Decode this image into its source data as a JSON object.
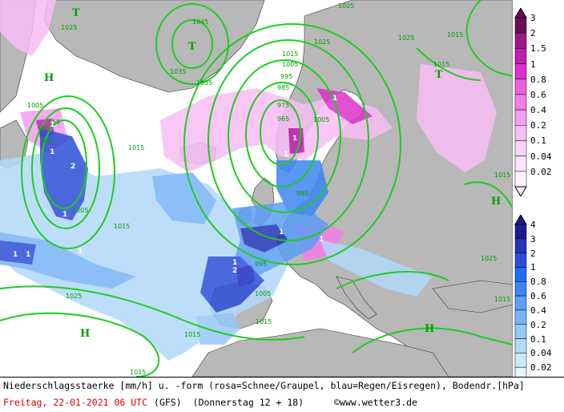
{
  "map": {
    "pressure_centers": [
      {
        "type": "T",
        "label": "T"
      },
      {
        "type": "H",
        "label": "H"
      },
      {
        "type": "T",
        "label": "T"
      },
      {
        "type": "T",
        "label": "T"
      },
      {
        "type": "H",
        "label": "H"
      },
      {
        "type": "H",
        "label": "H"
      },
      {
        "type": "H",
        "label": "H"
      }
    ],
    "isobar_labels": [
      "1045",
      "1035",
      "1025",
      "1025",
      "1035",
      "1015",
      "1015",
      "1015",
      "1025",
      "1005",
      "995",
      "985",
      "975",
      "965",
      "995",
      "1005",
      "1015",
      "965",
      "955",
      "1005",
      "1015",
      "1025",
      "985",
      "995",
      "1015",
      "1025",
      "1015",
      "1015",
      "1005",
      "1005",
      "1015",
      "1025",
      "1015"
    ],
    "precip_markers": [
      "1",
      "1",
      "2",
      "1",
      "1",
      "1",
      "1",
      "1",
      "1",
      "1",
      "2",
      "1",
      "1",
      "1",
      "1"
    ]
  },
  "legend_snow": {
    "labels": [
      "3",
      "2",
      "1.5",
      "1",
      "0.8",
      "0.6",
      "0.4",
      "0.2",
      "0.1",
      "0.04",
      "0.02"
    ],
    "colors": [
      "#6a0d55",
      "#9b1a86",
      "#c21cb0",
      "#dd33cc",
      "#ea5fdd",
      "#f27de8",
      "#f59ff0",
      "#f8bdf5",
      "#fad3f8",
      "#fde6fb",
      "#fff3fe"
    ]
  },
  "legend_rain": {
    "labels": [
      "4",
      "3",
      "2",
      "1",
      "0.8",
      "0.6",
      "0.4",
      "0.2",
      "0.1",
      "0.04",
      "0.02"
    ],
    "colors": [
      "#1c1c8a",
      "#2434b4",
      "#2c4fd6",
      "#1f6df0",
      "#3b86f2",
      "#5a9ff4",
      "#78b4f6",
      "#95c8f8",
      "#b2d9fa",
      "#cde8fc",
      "#e5f4fe"
    ]
  },
  "footer": {
    "caption": "Niederschlagsstaerke [mm/h] u. -form (rosa=Schnee/Graupel, blau=Regen/Eisregen), Bodendr.[hPa]",
    "date": "Freitag, 22-01-2021  06 UTC",
    "model": "(GFS)",
    "run": "(Donnerstag 12 + 18)",
    "copyright": "©www.wetter3.de"
  },
  "colors": {
    "isobar": "#1fcc1f",
    "land": "#b8b8b8",
    "sea": "#ffffff",
    "date": "#e00000",
    "pressure_letter": "#00a000"
  }
}
